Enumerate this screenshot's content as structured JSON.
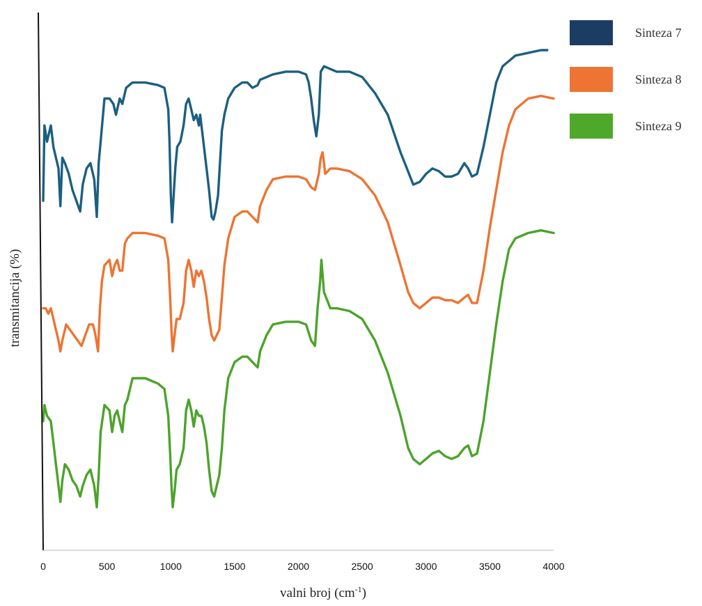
{
  "chart_data": {
    "type": "line",
    "title": "",
    "xlabel": "valni broj (cm",
    "xlabel_sup": "-1",
    "xlabel_close": ")",
    "ylabel": "transmitancija (%)",
    "xlim": [
      0,
      4000
    ],
    "ylim": [
      0,
      100
    ],
    "y_units": "arbitrary (stacked transmittance traces, no numeric y ticks shown)",
    "x_ticks": [
      "0",
      "500",
      "1000",
      "1500",
      "2000",
      "2500",
      "3000",
      "3500",
      "4000"
    ],
    "grid": false,
    "legend_position": "top-right",
    "series": [
      {
        "name": "Sinteza 7",
        "color": "#1b5f80",
        "legend_color": "#1b3d63",
        "points": [
          [
            0,
            65
          ],
          [
            10,
            79
          ],
          [
            30,
            76
          ],
          [
            60,
            79
          ],
          [
            80,
            75
          ],
          [
            100,
            73
          ],
          [
            120,
            71
          ],
          [
            135,
            64
          ],
          [
            150,
            73
          ],
          [
            170,
            72
          ],
          [
            200,
            70
          ],
          [
            230,
            67
          ],
          [
            260,
            65
          ],
          [
            290,
            63
          ],
          [
            310,
            68
          ],
          [
            340,
            71
          ],
          [
            370,
            72
          ],
          [
            400,
            69
          ],
          [
            420,
            62
          ],
          [
            435,
            72
          ],
          [
            450,
            76
          ],
          [
            480,
            84
          ],
          [
            520,
            84
          ],
          [
            550,
            83
          ],
          [
            570,
            81
          ],
          [
            600,
            84
          ],
          [
            620,
            83
          ],
          [
            650,
            86
          ],
          [
            700,
            87
          ],
          [
            800,
            87
          ],
          [
            900,
            86.5
          ],
          [
            950,
            86
          ],
          [
            980,
            82
          ],
          [
            990,
            76
          ],
          [
            1000,
            66
          ],
          [
            1010,
            61
          ],
          [
            1020,
            65
          ],
          [
            1035,
            71
          ],
          [
            1050,
            75
          ],
          [
            1075,
            76
          ],
          [
            1100,
            79
          ],
          [
            1120,
            83
          ],
          [
            1140,
            84
          ],
          [
            1160,
            82
          ],
          [
            1180,
            80
          ],
          [
            1200,
            81
          ],
          [
            1220,
            79
          ],
          [
            1230,
            81
          ],
          [
            1250,
            77
          ],
          [
            1280,
            71
          ],
          [
            1300,
            67
          ],
          [
            1320,
            62
          ],
          [
            1335,
            61.5
          ],
          [
            1350,
            63
          ],
          [
            1370,
            66
          ],
          [
            1400,
            78
          ],
          [
            1420,
            81
          ],
          [
            1450,
            84
          ],
          [
            1500,
            86
          ],
          [
            1560,
            87
          ],
          [
            1600,
            87
          ],
          [
            1640,
            86
          ],
          [
            1680,
            86.5
          ],
          [
            1700,
            87.5
          ],
          [
            1800,
            88.5
          ],
          [
            1900,
            89
          ],
          [
            2000,
            89
          ],
          [
            2060,
            88.5
          ],
          [
            2080,
            87
          ],
          [
            2100,
            84
          ],
          [
            2120,
            80
          ],
          [
            2140,
            77
          ],
          [
            2160,
            81
          ],
          [
            2175,
            89
          ],
          [
            2200,
            90
          ],
          [
            2300,
            89
          ],
          [
            2400,
            89
          ],
          [
            2500,
            88
          ],
          [
            2600,
            85
          ],
          [
            2700,
            81
          ],
          [
            2800,
            74
          ],
          [
            2850,
            71
          ],
          [
            2900,
            68
          ],
          [
            2950,
            68.5
          ],
          [
            3000,
            70
          ],
          [
            3050,
            71
          ],
          [
            3100,
            70.5
          ],
          [
            3150,
            69.5
          ],
          [
            3200,
            69.5
          ],
          [
            3250,
            70
          ],
          [
            3300,
            72
          ],
          [
            3330,
            71
          ],
          [
            3360,
            69.5
          ],
          [
            3400,
            70
          ],
          [
            3450,
            75
          ],
          [
            3500,
            81
          ],
          [
            3550,
            87
          ],
          [
            3600,
            90
          ],
          [
            3650,
            91
          ],
          [
            3700,
            92
          ],
          [
            3800,
            92.5
          ],
          [
            3900,
            93
          ],
          [
            3950,
            93
          ]
        ]
      },
      {
        "name": "Sinteza 8",
        "color": "#ed7432",
        "legend_color": "#ed7432",
        "points": [
          [
            0,
            45
          ],
          [
            20,
            45
          ],
          [
            40,
            44
          ],
          [
            60,
            45
          ],
          [
            80,
            43
          ],
          [
            100,
            41
          ],
          [
            120,
            39
          ],
          [
            135,
            37
          ],
          [
            150,
            39
          ],
          [
            180,
            42
          ],
          [
            210,
            41
          ],
          [
            240,
            40
          ],
          [
            270,
            39
          ],
          [
            300,
            38
          ],
          [
            330,
            40
          ],
          [
            360,
            42
          ],
          [
            390,
            42
          ],
          [
            410,
            40
          ],
          [
            430,
            37
          ],
          [
            445,
            45
          ],
          [
            460,
            50
          ],
          [
            480,
            53
          ],
          [
            520,
            54
          ],
          [
            540,
            51
          ],
          [
            560,
            53
          ],
          [
            580,
            54
          ],
          [
            600,
            52
          ],
          [
            620,
            52
          ],
          [
            640,
            57
          ],
          [
            660,
            58
          ],
          [
            700,
            59
          ],
          [
            800,
            59
          ],
          [
            900,
            58.5
          ],
          [
            950,
            58
          ],
          [
            980,
            54
          ],
          [
            995,
            47
          ],
          [
            1005,
            41
          ],
          [
            1015,
            37
          ],
          [
            1030,
            40
          ],
          [
            1045,
            43
          ],
          [
            1070,
            43
          ],
          [
            1100,
            46
          ],
          [
            1120,
            52
          ],
          [
            1140,
            54
          ],
          [
            1160,
            52
          ],
          [
            1180,
            49
          ],
          [
            1200,
            52
          ],
          [
            1220,
            51
          ],
          [
            1240,
            52
          ],
          [
            1260,
            50
          ],
          [
            1280,
            47
          ],
          [
            1300,
            43
          ],
          [
            1320,
            40
          ],
          [
            1340,
            39
          ],
          [
            1360,
            40
          ],
          [
            1380,
            41
          ],
          [
            1400,
            47
          ],
          [
            1420,
            53
          ],
          [
            1450,
            58
          ],
          [
            1500,
            62
          ],
          [
            1560,
            63
          ],
          [
            1600,
            63
          ],
          [
            1640,
            62
          ],
          [
            1680,
            61
          ],
          [
            1700,
            64
          ],
          [
            1750,
            67
          ],
          [
            1800,
            69
          ],
          [
            1900,
            69.5
          ],
          [
            2000,
            69.5
          ],
          [
            2060,
            69
          ],
          [
            2100,
            67.5
          ],
          [
            2130,
            67
          ],
          [
            2160,
            70
          ],
          [
            2175,
            73
          ],
          [
            2190,
            74
          ],
          [
            2210,
            70
          ],
          [
            2250,
            71
          ],
          [
            2300,
            71
          ],
          [
            2400,
            70.5
          ],
          [
            2500,
            69
          ],
          [
            2600,
            66
          ],
          [
            2700,
            61
          ],
          [
            2800,
            53
          ],
          [
            2860,
            48
          ],
          [
            2900,
            46
          ],
          [
            2950,
            45
          ],
          [
            3000,
            46
          ],
          [
            3050,
            47
          ],
          [
            3100,
            47
          ],
          [
            3150,
            46.5
          ],
          [
            3200,
            46.5
          ],
          [
            3250,
            46
          ],
          [
            3300,
            47
          ],
          [
            3330,
            47.5
          ],
          [
            3360,
            46
          ],
          [
            3400,
            46
          ],
          [
            3450,
            52
          ],
          [
            3500,
            60
          ],
          [
            3550,
            67
          ],
          [
            3600,
            74
          ],
          [
            3650,
            79
          ],
          [
            3700,
            82
          ],
          [
            3800,
            84
          ],
          [
            3900,
            84.5
          ],
          [
            4000,
            84
          ]
        ]
      },
      {
        "name": "Sinteza 9",
        "color": "#4ca32b",
        "legend_color": "#4ea82a",
        "points": [
          [
            0,
            24
          ],
          [
            10,
            27
          ],
          [
            30,
            25
          ],
          [
            60,
            24
          ],
          [
            80,
            20
          ],
          [
            100,
            16
          ],
          [
            120,
            12
          ],
          [
            135,
            9
          ],
          [
            150,
            13
          ],
          [
            170,
            16
          ],
          [
            200,
            15
          ],
          [
            230,
            13
          ],
          [
            260,
            12
          ],
          [
            290,
            10
          ],
          [
            310,
            12
          ],
          [
            340,
            14
          ],
          [
            370,
            15
          ],
          [
            400,
            12
          ],
          [
            420,
            8
          ],
          [
            435,
            14
          ],
          [
            450,
            22
          ],
          [
            480,
            27
          ],
          [
            520,
            26
          ],
          [
            540,
            22
          ],
          [
            560,
            25
          ],
          [
            580,
            26
          ],
          [
            600,
            24
          ],
          [
            620,
            22
          ],
          [
            640,
            27
          ],
          [
            660,
            28
          ],
          [
            700,
            32
          ],
          [
            800,
            32
          ],
          [
            900,
            31
          ],
          [
            950,
            30
          ],
          [
            980,
            25
          ],
          [
            995,
            18
          ],
          [
            1005,
            12
          ],
          [
            1015,
            8
          ],
          [
            1030,
            11
          ],
          [
            1045,
            15
          ],
          [
            1070,
            16
          ],
          [
            1100,
            19
          ],
          [
            1120,
            26
          ],
          [
            1140,
            28
          ],
          [
            1160,
            26
          ],
          [
            1180,
            23
          ],
          [
            1200,
            26
          ],
          [
            1220,
            25
          ],
          [
            1240,
            25
          ],
          [
            1260,
            23
          ],
          [
            1280,
            20
          ],
          [
            1300,
            15
          ],
          [
            1320,
            11
          ],
          [
            1340,
            10
          ],
          [
            1360,
            12
          ],
          [
            1380,
            14
          ],
          [
            1400,
            19
          ],
          [
            1420,
            26
          ],
          [
            1450,
            32
          ],
          [
            1500,
            35
          ],
          [
            1560,
            36
          ],
          [
            1600,
            36
          ],
          [
            1640,
            35
          ],
          [
            1680,
            34
          ],
          [
            1700,
            37
          ],
          [
            1750,
            40
          ],
          [
            1800,
            42
          ],
          [
            1900,
            42.5
          ],
          [
            2000,
            42.5
          ],
          [
            2060,
            42
          ],
          [
            2100,
            39
          ],
          [
            2130,
            38
          ],
          [
            2150,
            45
          ],
          [
            2170,
            50
          ],
          [
            2180,
            54
          ],
          [
            2200,
            48
          ],
          [
            2250,
            45
          ],
          [
            2300,
            45
          ],
          [
            2400,
            44.5
          ],
          [
            2500,
            43
          ],
          [
            2600,
            39
          ],
          [
            2700,
            33
          ],
          [
            2800,
            25
          ],
          [
            2860,
            19
          ],
          [
            2900,
            17
          ],
          [
            2950,
            16
          ],
          [
            3000,
            17
          ],
          [
            3050,
            18
          ],
          [
            3100,
            18.5
          ],
          [
            3150,
            17.5
          ],
          [
            3200,
            17
          ],
          [
            3250,
            17.5
          ],
          [
            3300,
            19
          ],
          [
            3330,
            19.5
          ],
          [
            3360,
            17.5
          ],
          [
            3400,
            18
          ],
          [
            3450,
            24
          ],
          [
            3500,
            33
          ],
          [
            3550,
            42
          ],
          [
            3600,
            50
          ],
          [
            3650,
            56
          ],
          [
            3700,
            58
          ],
          [
            3800,
            59
          ],
          [
            3900,
            59.5
          ],
          [
            4000,
            59
          ]
        ]
      }
    ]
  }
}
